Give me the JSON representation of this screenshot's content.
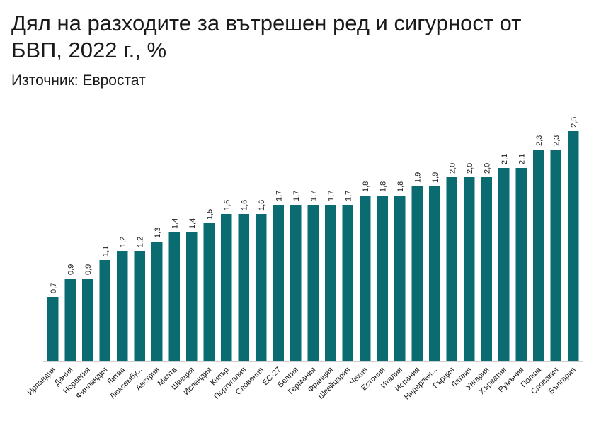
{
  "title": "Дял на разходите за вътрешен ред и сигурност от БВП, 2022 г., %",
  "subtitle": "Източник: Евростат",
  "colors": {
    "bar": "#0a6b70",
    "axis": "#cfcfcf",
    "text": "#1a1a1a"
  },
  "chart_data": {
    "type": "bar",
    "title": "Дял на разходите за вътрешен ред и сигурност от БВП, 2022 г., %",
    "subtitle": "Източник: Евростат",
    "categories": [
      "Ирландия",
      "Дания",
      "Норвегия",
      "Финландия",
      "Литва",
      "Люксембу...",
      "Австрия",
      "Малта",
      "Швеция",
      "Исландия",
      "Кипър",
      "Португалия",
      "Словения",
      "ЕС-27",
      "Белгия",
      "Германия",
      "Франция",
      "Швейцария",
      "Чехия",
      "Естония",
      "Италия",
      "Испания",
      "Нидерлан...",
      "Гърция",
      "Латвия",
      "Унгария",
      "Хърватия",
      "Румъния",
      "Полша",
      "Словакия",
      "България"
    ],
    "values": [
      0.7,
      0.9,
      0.9,
      1.1,
      1.2,
      1.2,
      1.3,
      1.4,
      1.4,
      1.5,
      1.6,
      1.6,
      1.6,
      1.7,
      1.7,
      1.7,
      1.7,
      1.7,
      1.8,
      1.8,
      1.8,
      1.9,
      1.9,
      2.0,
      2.0,
      2.0,
      2.1,
      2.1,
      2.3,
      2.3,
      2.5
    ],
    "value_labels": [
      "0,7",
      "0,9",
      "0,9",
      "1,1",
      "1,2",
      "1,2",
      "1,3",
      "1,4",
      "1,4",
      "1,5",
      "1,6",
      "1,6",
      "1,6",
      "1,7",
      "1,7",
      "1,7",
      "1,7",
      "1,7",
      "1,8",
      "1,8",
      "1,8",
      "1,9",
      "1,9",
      "2,0",
      "2,0",
      "2,0",
      "2,1",
      "2,1",
      "2,3",
      "2,3",
      "2,5"
    ],
    "ylim": [
      0,
      2.5
    ],
    "grid": false,
    "legend": "none"
  }
}
